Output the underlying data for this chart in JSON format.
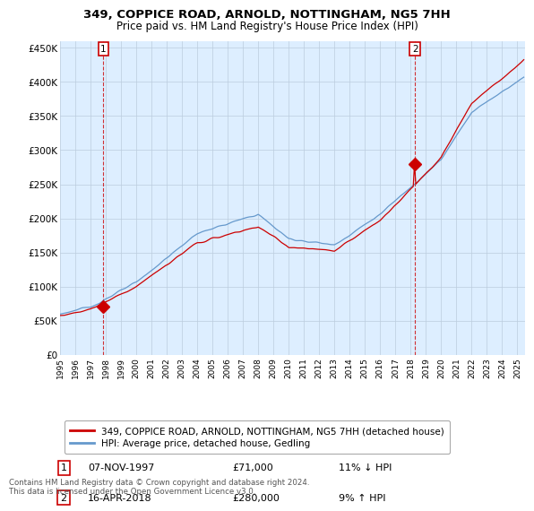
{
  "title": "349, COPPICE ROAD, ARNOLD, NOTTINGHAM, NG5 7HH",
  "subtitle": "Price paid vs. HM Land Registry's House Price Index (HPI)",
  "legend_line1": "349, COPPICE ROAD, ARNOLD, NOTTINGHAM, NG5 7HH (detached house)",
  "legend_line2": "HPI: Average price, detached house, Gedling",
  "annotation1_date": "07-NOV-1997",
  "annotation1_price": "£71,000",
  "annotation1_hpi": "11% ↓ HPI",
  "annotation2_date": "16-APR-2018",
  "annotation2_price": "£280,000",
  "annotation2_hpi": "9% ↑ HPI",
  "footer": "Contains HM Land Registry data © Crown copyright and database right 2024.\nThis data is licensed under the Open Government Licence v3.0.",
  "sale1_year": 1997.85,
  "sale1_value": 71000,
  "sale2_year": 2018.29,
  "sale2_value": 280000,
  "hpi_color": "#6699cc",
  "price_color": "#cc0000",
  "ylim_min": 0,
  "ylim_max": 460000,
  "yticks": [
    0,
    50000,
    100000,
    150000,
    200000,
    250000,
    300000,
    350000,
    400000,
    450000
  ],
  "ytick_labels": [
    "£0",
    "£50K",
    "£100K",
    "£150K",
    "£200K",
    "£250K",
    "£300K",
    "£350K",
    "£400K",
    "£450K"
  ],
  "background_color": "#ffffff",
  "plot_bg_color": "#ddeeff",
  "grid_color": "#bbccdd"
}
